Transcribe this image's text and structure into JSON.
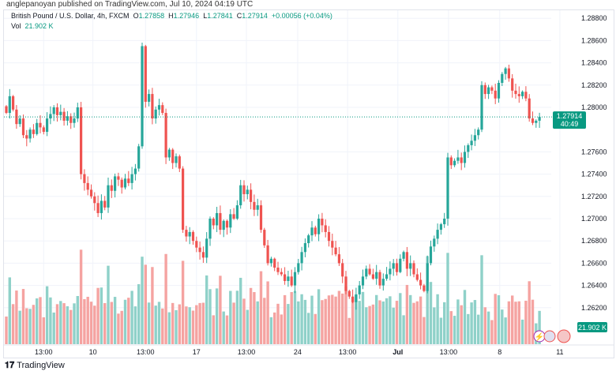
{
  "published": "anglepanoyan published on TradingView.com, Jul 10, 2024 04:19 UTC",
  "legend": {
    "symbol": "British Pound / U.S. Dollar, 4h, FXCM",
    "o_label": "O",
    "o": "1.27858",
    "h_label": "H",
    "h": "1.27946",
    "l_label": "L",
    "l": "1.27841",
    "c_label": "C",
    "c": "1.27914",
    "change": "+0.00056 (+0.04%)",
    "vol_label": "Vol",
    "vol": "21.902 K"
  },
  "watermark": "TradingView",
  "colors": {
    "up": "#26a69a",
    "down": "#ef5350",
    "vol_up": "#8fd1c9",
    "vol_down": "#f5a3a1",
    "badge": "#089981"
  },
  "chart_data": {
    "type": "candlestick",
    "title": "British Pound / U.S. Dollar, 4h, FXCM",
    "ylim": [
      1.2614,
      1.2896
    ],
    "price_ticks": [
      "1.28800",
      "1.28600",
      "1.28400",
      "1.28200",
      "1.28000",
      "1.27600",
      "1.27400",
      "1.27200",
      "1.27000",
      "1.26800",
      "1.26600",
      "1.26400",
      "1.26200"
    ],
    "x_ticks": [
      {
        "label": "13:00",
        "i": 11
      },
      {
        "label": "10",
        "i": 25.5
      },
      {
        "label": "13:00",
        "i": 41
      },
      {
        "label": "17",
        "i": 56
      },
      {
        "label": "13:00",
        "i": 70.7
      },
      {
        "label": "24",
        "i": 85.8
      },
      {
        "label": "13:00",
        "i": 100.5
      },
      {
        "label": "Jul",
        "i": 115.3,
        "bold": true
      },
      {
        "label": "13:00",
        "i": 130.2
      },
      {
        "label": "8",
        "i": 145.3
      },
      {
        "label": "11",
        "i": 163
      }
    ],
    "last_price": "1.27914",
    "countdown": "40:49",
    "last_volume": "21.902 K",
    "closes": [
      1.2795,
      1.281,
      1.2798,
      1.2785,
      1.279,
      1.2775,
      1.2772,
      1.278,
      1.2776,
      1.2786,
      1.2782,
      1.2778,
      1.279,
      1.2794,
      1.28,
      1.2793,
      1.2796,
      1.2788,
      1.2792,
      1.2786,
      1.279,
      1.28,
      1.274,
      1.2732,
      1.2726,
      1.272,
      1.2714,
      1.2705,
      1.2716,
      1.271,
      1.273,
      1.2725,
      1.2738,
      1.2735,
      1.2728,
      1.2736,
      1.2732,
      1.274,
      1.2745,
      1.2765,
      1.2855,
      1.2805,
      1.2812,
      1.279,
      1.2798,
      1.2802,
      1.2795,
      1.2755,
      1.2762,
      1.275,
      1.2756,
      1.2745,
      1.269,
      1.2684,
      1.2688,
      1.268,
      1.2674,
      1.267,
      1.2665,
      1.2682,
      1.27,
      1.2694,
      1.2705,
      1.269,
      1.2698,
      1.2692,
      1.2704,
      1.27,
      1.2712,
      1.273,
      1.2722,
      1.2726,
      1.2715,
      1.2708,
      1.2712,
      1.269,
      1.2676,
      1.266,
      1.2664,
      1.2656,
      1.2652,
      1.265,
      1.2644,
      1.2648,
      1.264,
      1.2652,
      1.266,
      1.267,
      1.2678,
      1.2685,
      1.2692,
      1.2686,
      1.27,
      1.2694,
      1.2688,
      1.268,
      1.2674,
      1.2668,
      1.266,
      1.2648,
      1.2635,
      1.263,
      1.2625,
      1.2632,
      1.264,
      1.2648,
      1.2655,
      1.265,
      1.2646,
      1.2652,
      1.264,
      1.2646,
      1.265,
      1.2655,
      1.266,
      1.2652,
      1.2664,
      1.267,
      1.2655,
      1.266,
      1.265,
      1.2645,
      1.264,
      1.2635,
      1.266,
      1.2675,
      1.2682,
      1.269,
      1.2695,
      1.27,
      1.2755,
      1.2748,
      1.2752,
      1.2755,
      1.275,
      1.276,
      1.2766,
      1.277,
      1.2775,
      1.278,
      1.282,
      1.2812,
      1.2818,
      1.2815,
      1.2808,
      1.2822,
      1.283,
      1.2835,
      1.2826,
      1.2815,
      1.2812,
      1.281,
      1.2814,
      1.2808,
      1.279,
      1.2786,
      1.2788,
      1.27914
    ]
  }
}
